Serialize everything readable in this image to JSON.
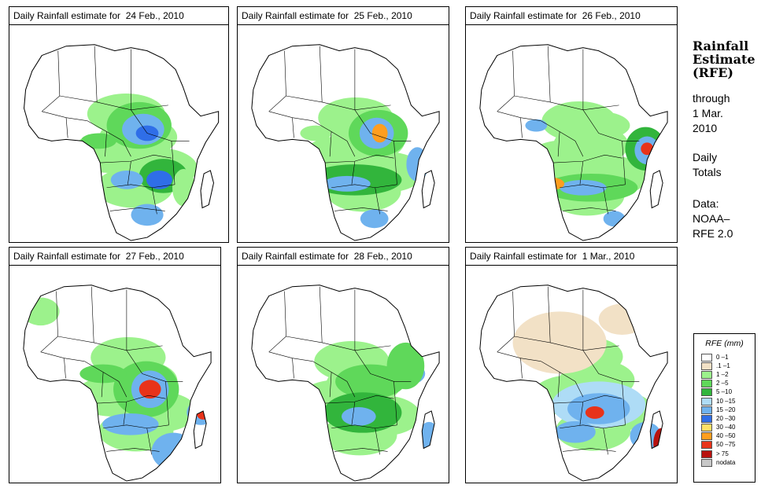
{
  "panels": [
    {
      "title": "Daily Rainfall estimate for  24 Feb., 2010"
    },
    {
      "title": "Daily Rainfall estimate for  25 Feb., 2010"
    },
    {
      "title": "Daily Rainfall estimate for  26 Feb., 2010"
    },
    {
      "title": "Daily Rainfall estimate for  27 Feb., 2010"
    },
    {
      "title": "Daily Rainfall estimate for  28 Feb., 2010"
    },
    {
      "title": "Daily Rainfall estimate for  1 Mar., 2010"
    }
  ],
  "side": {
    "title_line1": "Rainfall",
    "title_line2": "Estimate",
    "title_line3": "(RFE)",
    "through": "through",
    "date_line1": "1 Mar.",
    "date_line2": "2010",
    "daily": "Daily",
    "totals": "Totals",
    "data_label": "Data:",
    "source_line1": "NOAA–",
    "source_line2": "RFE 2.0"
  },
  "legend": {
    "title": "RFE (mm)",
    "items": [
      {
        "label": "0 –1",
        "color": "#ffffff"
      },
      {
        "label": ".1 –1",
        "color": "#f2e1c6"
      },
      {
        "label": "1 –2",
        "color": "#9cf28c"
      },
      {
        "label": "2 –5",
        "color": "#5fd85a"
      },
      {
        "label": "5 –10",
        "color": "#32b53c"
      },
      {
        "label": "10 –15",
        "color": "#aedcf6"
      },
      {
        "label": "15 –20",
        "color": "#6fb2ee"
      },
      {
        "label": "20 –30",
        "color": "#2f6ee8"
      },
      {
        "label": "30 –40",
        "color": "#ffe066"
      },
      {
        "label": "40 –50",
        "color": "#ff9e1f"
      },
      {
        "label": "50 –75",
        "color": "#e8331a"
      },
      {
        "label": "> 75",
        "color": "#b8120f"
      },
      {
        "label": "nodata",
        "color": "#c8c8c8"
      }
    ]
  }
}
